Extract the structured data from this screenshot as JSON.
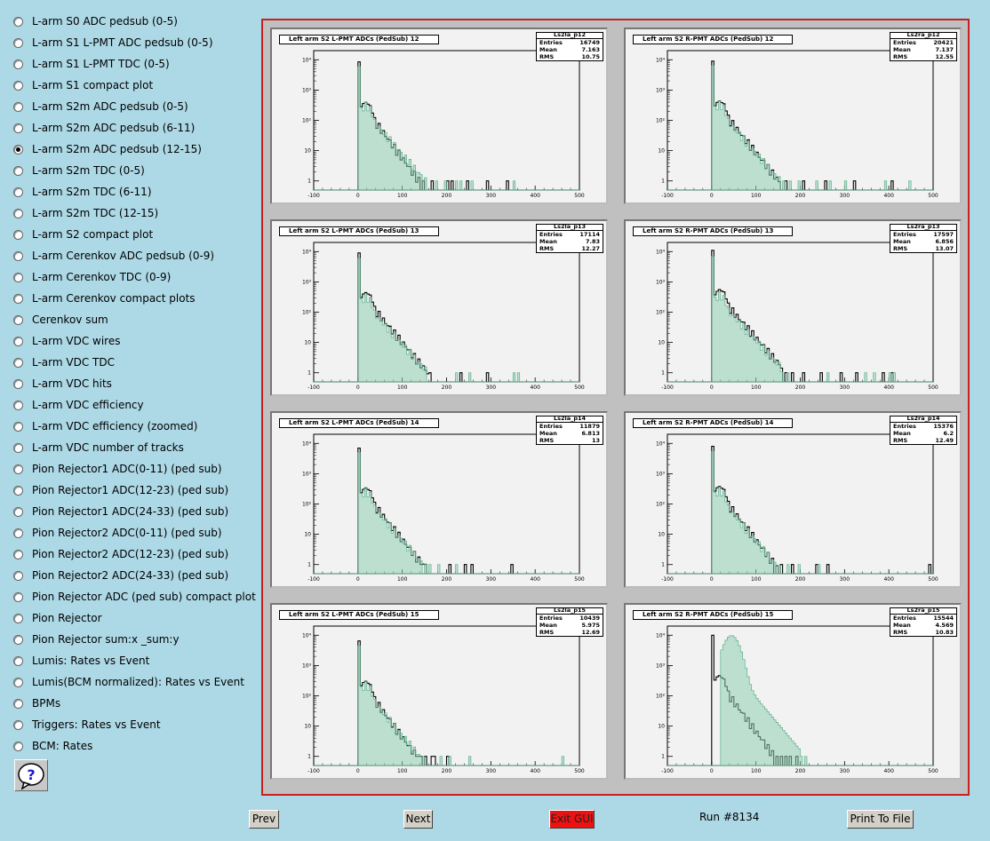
{
  "menu": [
    "L-arm S0 ADC pedsub (0-5)",
    "L-arm S1 L-PMT ADC pedsub (0-5)",
    "L-arm S1 L-PMT TDC (0-5)",
    "L-arm S1 compact plot",
    "L-arm S2m ADC pedsub (0-5)",
    "L-arm S2m ADC pedsub (6-11)",
    "L-arm S2m ADC pedsub (12-15)",
    "L-arm S2m TDC (0-5)",
    "L-arm S2m TDC (6-11)",
    "L-arm S2m TDC (12-15)",
    "L-arm S2 compact plot",
    "L-arm Cerenkov ADC pedsub (0-9)",
    "L-arm Cerenkov TDC (0-9)",
    "L-arm Cerenkov compact plots",
    "Cerenkov sum",
    "L-arm VDC wires",
    "L-arm VDC TDC",
    "L-arm VDC hits",
    "L-arm VDC efficiency",
    "L-arm VDC efficiency (zoomed)",
    "L-arm VDC number of tracks",
    "Pion Rejector1 ADC(0-11) (ped sub)",
    "Pion Rejector1 ADC(12-23) (ped sub)",
    "Pion Rejector1 ADC(24-33) (ped sub)",
    "Pion Rejector2 ADC(0-11) (ped sub)",
    "Pion Rejector2 ADC(12-23) (ped sub)",
    "Pion Rejector2 ADC(24-33) (ped sub)",
    "Pion Rejector ADC (ped sub) compact plot",
    "Pion Rejector",
    "Pion Rejector sum:x _sum:y",
    "Lumis: Rates vs Event",
    "Lumis(BCM normalized): Rates vs Event",
    "BPMs",
    "Triggers: Rates vs Event",
    "BCM: Rates"
  ],
  "selected_index": 6,
  "help_icon": "question-mark-icon",
  "buttons": {
    "prev": "Prev",
    "next": "Next",
    "exit": "Exit GUI",
    "print": "Print To File"
  },
  "run_label": "Run #8134",
  "colors": {
    "background": "#add8e6",
    "frame_border": "#cc1f1f",
    "fill_hist": "#8fd0b4",
    "exit_button": "#ee1111"
  },
  "stat_labels": {
    "entries": "Entries",
    "mean": "Mean",
    "rms": "RMS"
  },
  "chart_data": [
    {
      "type": "bar",
      "title": "Left arm S2 L-PMT ADCs (PedSub) 12",
      "stats_name": "Ls2la_p12",
      "entries": "16749",
      "mean": "7.163",
      "rms": "10.75",
      "xlim": [
        -100,
        500
      ],
      "x_ticks": [
        "-100",
        "0",
        "100",
        "200",
        "300",
        "400",
        "500"
      ],
      "ylim": [
        0.5,
        20000
      ],
      "log_y": true,
      "y_ticks": [
        "1",
        "10",
        "10²",
        "10³",
        "10⁴"
      ],
      "histograms": [
        {
          "style": "outline",
          "peak": 8500,
          "decay": 22,
          "noise": "0.04x+0.3",
          "tail_bins": [
            103,
            116,
            128,
            148,
            165,
            200,
            212,
            247,
            290,
            337
          ]
        },
        {
          "style": "filled",
          "peak": 6000,
          "decay": 26,
          "noise": "0.04x+0.3",
          "tail_bins": [
            110,
            118,
            140,
            178,
            195,
            223,
            231,
            255,
            350
          ]
        }
      ]
    },
    {
      "type": "bar",
      "title": "Left arm S2 R-PMT ADCs (PedSub) 12",
      "stats_name": "Ls2ra_p12",
      "entries": "20421",
      "mean": "7.137",
      "rms": "12.55",
      "xlim": [
        -100,
        500
      ],
      "x_ticks": [
        "-100",
        "0",
        "100",
        "200",
        "300",
        "400",
        "500"
      ],
      "ylim": [
        0.5,
        20000
      ],
      "log_y": true,
      "y_ticks": [
        "1",
        "10",
        "10²",
        "10³",
        "10⁴"
      ],
      "histograms": [
        {
          "style": "outline",
          "peak": 9000,
          "decay": 24,
          "noise": "0.04x+0.3",
          "tail_bins": [
            118,
            130,
            143,
            165,
            205,
            255,
            322,
            405
          ]
        },
        {
          "style": "filled",
          "peak": 6500,
          "decay": 26,
          "noise": "0.04x+0.3",
          "tail_bins": [
            128,
            160,
            175,
            197,
            238,
            265,
            300,
            390,
            445
          ]
        }
      ]
    },
    {
      "type": "bar",
      "title": "Left arm S2 L-PMT ADCs (PedSub) 13",
      "stats_name": "Ls2la_p13",
      "entries": "17114",
      "mean": "7.83",
      "rms": "12.27",
      "xlim": [
        -100,
        500
      ],
      "x_ticks": [
        "-100",
        "0",
        "100",
        "200",
        "300",
        "400",
        "500"
      ],
      "ylim": [
        0.5,
        20000
      ],
      "log_y": true,
      "y_ticks": [
        "1",
        "10",
        "10²",
        "10³",
        "10⁴"
      ],
      "histograms": [
        {
          "style": "outline",
          "peak": 9000,
          "decay": 25,
          "noise": "0.04x+0.3",
          "tail_bins": [
            108,
            122,
            135,
            163,
            230,
            290
          ]
        },
        {
          "style": "filled",
          "peak": 6000,
          "decay": 27,
          "noise": "0.04x+0.3",
          "tail_bins": [
            125,
            152,
            220,
            252,
            352,
            360
          ]
        }
      ]
    },
    {
      "type": "bar",
      "title": "Left arm S2 R-PMT ADCs (PedSub) 13",
      "stats_name": "Ls2ra_p13",
      "entries": "17597",
      "mean": "6.856",
      "rms": "13.07",
      "xlim": [
        -100,
        500
      ],
      "x_ticks": [
        "-100",
        "0",
        "100",
        "200",
        "300",
        "400",
        "500"
      ],
      "ylim": [
        0.5,
        20000
      ],
      "log_y": true,
      "y_ticks": [
        "1",
        "10",
        "10²",
        "10³",
        "10⁴"
      ],
      "histograms": [
        {
          "style": "outline",
          "peak": 11000,
          "decay": 26,
          "noise": "0.04x+0.3",
          "tail_bins": [
            120,
            132,
            148,
            165,
            180,
            205,
            245,
            290,
            325,
            385,
            408
          ]
        },
        {
          "style": "filled",
          "peak": 7000,
          "decay": 28,
          "noise": "0.04x+0.3",
          "tail_bins": [
            135,
            170,
            260,
            345,
            368,
            400,
            412
          ]
        }
      ]
    },
    {
      "type": "bar",
      "title": "Left arm S2 L-PMT ADCs (PedSub) 14",
      "stats_name": "Ls2la_p14",
      "entries": "11879",
      "mean": "6.813",
      "rms": "13",
      "xlim": [
        -100,
        500
      ],
      "x_ticks": [
        "-100",
        "0",
        "100",
        "200",
        "300",
        "400",
        "500"
      ],
      "ylim": [
        0.5,
        20000
      ],
      "log_y": true,
      "y_ticks": [
        "1",
        "10",
        "10²",
        "10³",
        "10⁴"
      ],
      "histograms": [
        {
          "style": "outline",
          "peak": 7000,
          "decay": 24,
          "noise": "0.04x+0.3",
          "tail_bins": [
            108,
            125,
            140,
            150,
            205,
            240,
            255,
            345
          ]
        },
        {
          "style": "filled",
          "peak": 5000,
          "decay": 26,
          "noise": "0.04x+0.3",
          "tail_bins": [
            130,
            160,
            183,
            220
          ]
        }
      ]
    },
    {
      "type": "bar",
      "title": "Left arm S2 R-PMT ADCs (PedSub) 14",
      "stats_name": "Ls2ra_p14",
      "entries": "15376",
      "mean": "6.2",
      "rms": "12.49",
      "xlim": [
        -100,
        500
      ],
      "x_ticks": [
        "-100",
        "0",
        "100",
        "200",
        "300",
        "400",
        "500"
      ],
      "ylim": [
        0.5,
        20000
      ],
      "log_y": true,
      "y_ticks": [
        "1",
        "10",
        "10²",
        "10³",
        "10⁴"
      ],
      "histograms": [
        {
          "style": "outline",
          "peak": 8000,
          "decay": 23,
          "noise": "0.04x+0.3",
          "tail_bins": [
            108,
            120,
            130,
            158,
            182,
            235,
            260,
            490
          ]
        },
        {
          "style": "filled",
          "peak": 5500,
          "decay": 25,
          "noise": "0.04x+0.3",
          "tail_bins": [
            122,
            140,
            170,
            198,
            240
          ]
        }
      ]
    },
    {
      "type": "bar",
      "title": "Left arm S2 L-PMT ADCs (PedSub) 15",
      "stats_name": "Ls2la_p15",
      "entries": "10439",
      "mean": "5.975",
      "rms": "12.69",
      "xlim": [
        -100,
        500
      ],
      "x_ticks": [
        "-100",
        "0",
        "100",
        "200",
        "300",
        "400",
        "500"
      ],
      "ylim": [
        0.5,
        20000
      ],
      "log_y": true,
      "y_ticks": [
        "1",
        "10",
        "10²",
        "10³",
        "10⁴"
      ],
      "histograms": [
        {
          "style": "outline",
          "peak": 6500,
          "decay": 22,
          "noise": "0.04x+0.3",
          "tail_bins": [
            110,
            120,
            133,
            140,
            152,
            165,
            172,
            200
          ]
        },
        {
          "style": "filled",
          "peak": 4500,
          "decay": 25,
          "noise": "0.04x+0.3",
          "tail_bins": [
            125,
            145,
            185,
            205,
            250,
            460
          ]
        }
      ]
    },
    {
      "type": "bar",
      "title": "Left arm S2 R-PMT ADCs (PedSub) 15",
      "stats_name": "Ls2ra_p15",
      "entries": "15544",
      "mean": "4.569",
      "rms": "10.83",
      "xlim": [
        -100,
        500
      ],
      "x_ticks": [
        "-100",
        "0",
        "100",
        "200",
        "300",
        "400",
        "500"
      ],
      "ylim": [
        0.5,
        20000
      ],
      "log_y": true,
      "y_ticks": [
        "1",
        "10",
        "10²",
        "10³",
        "10⁴"
      ],
      "histograms": [
        {
          "style": "outline",
          "peak": 10000,
          "decay": 22,
          "noise": "0.04x+0.3",
          "tail_bins": [
            122,
            135,
            145,
            155,
            168,
            178,
            190
          ]
        },
        {
          "style": "filled",
          "peak": 9000,
          "decay": 20,
          "noise": "shifted",
          "tail_bins": [
            150,
            160,
            170,
            180,
            190,
            200,
            210
          ]
        }
      ]
    }
  ]
}
